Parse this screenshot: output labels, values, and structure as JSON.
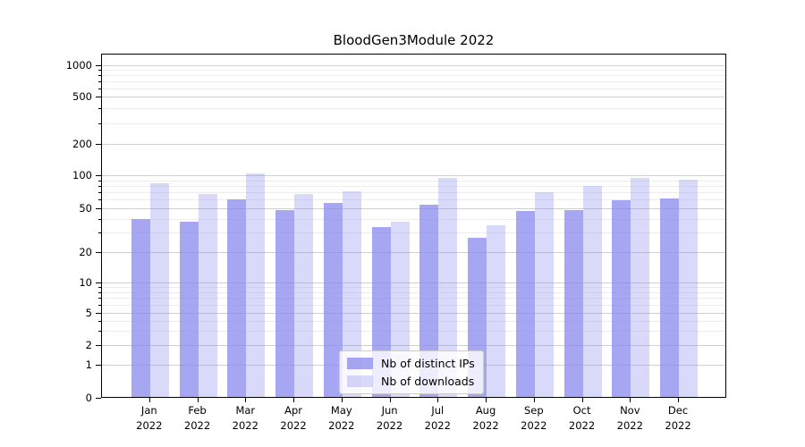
{
  "window": {
    "background": "#ffffff"
  },
  "chart_data": {
    "type": "bar",
    "title": "BloodGen3Module 2022",
    "categories": [
      "Jan",
      "Feb",
      "Mar",
      "Apr",
      "May",
      "Jun",
      "Jul",
      "Aug",
      "Sep",
      "Oct",
      "Nov",
      "Dec"
    ],
    "year_label": "2022",
    "series": [
      {
        "name": "Nb of distinct IPs",
        "color": "rgba(136,136,238,0.75)",
        "values": [
          40,
          38,
          60,
          48,
          56,
          34,
          54,
          27,
          47,
          48,
          59,
          61
        ]
      },
      {
        "name": "Nb of downloads",
        "color": "rgba(136,136,238,0.32)",
        "values": [
          84,
          68,
          105,
          68,
          72,
          38,
          95,
          35,
          70,
          80,
          95,
          91
        ]
      }
    ],
    "xlabel": "",
    "ylabel": "",
    "y_axis": {
      "scale": "symlog",
      "range": [
        0,
        1000
      ],
      "major_ticks": [
        0,
        1,
        2,
        5,
        10,
        20,
        50,
        100,
        200,
        500,
        1000
      ],
      "minor_ticks": [
        3,
        4,
        6,
        7,
        8,
        9,
        30,
        40,
        60,
        70,
        80,
        90,
        300,
        400,
        600,
        700,
        800,
        900
      ]
    },
    "grid": {
      "enabled": true,
      "major_color": "#cfcfcf",
      "minor_color": "#ededed"
    },
    "legend": {
      "position": "lower-center",
      "background": "rgba(255,255,255,0.8)",
      "border_color": "#cccccc"
    }
  }
}
